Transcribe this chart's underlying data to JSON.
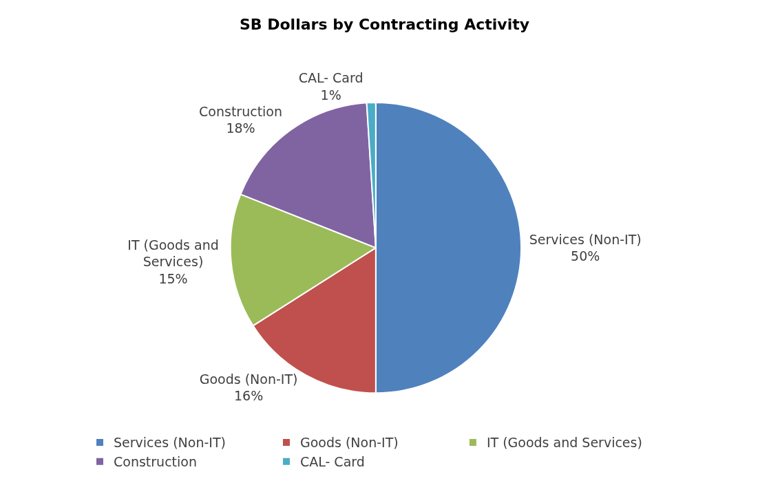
{
  "chart_data": {
    "type": "pie",
    "title": "SB Dollars by Contracting Activity",
    "categories": [
      "Services (Non-IT)",
      "Goods (Non-IT)",
      "IT (Goods and Services)",
      "Construction",
      "CAL- Card"
    ],
    "values": [
      50,
      16,
      15,
      18,
      1
    ],
    "value_labels": [
      "50%",
      "16%",
      "15%",
      "18%",
      "1%"
    ],
    "colors": [
      "#4f81bd",
      "#c0504d",
      "#9bbb59",
      "#8064a2",
      "#4bacc6"
    ],
    "legend": "bottom"
  }
}
